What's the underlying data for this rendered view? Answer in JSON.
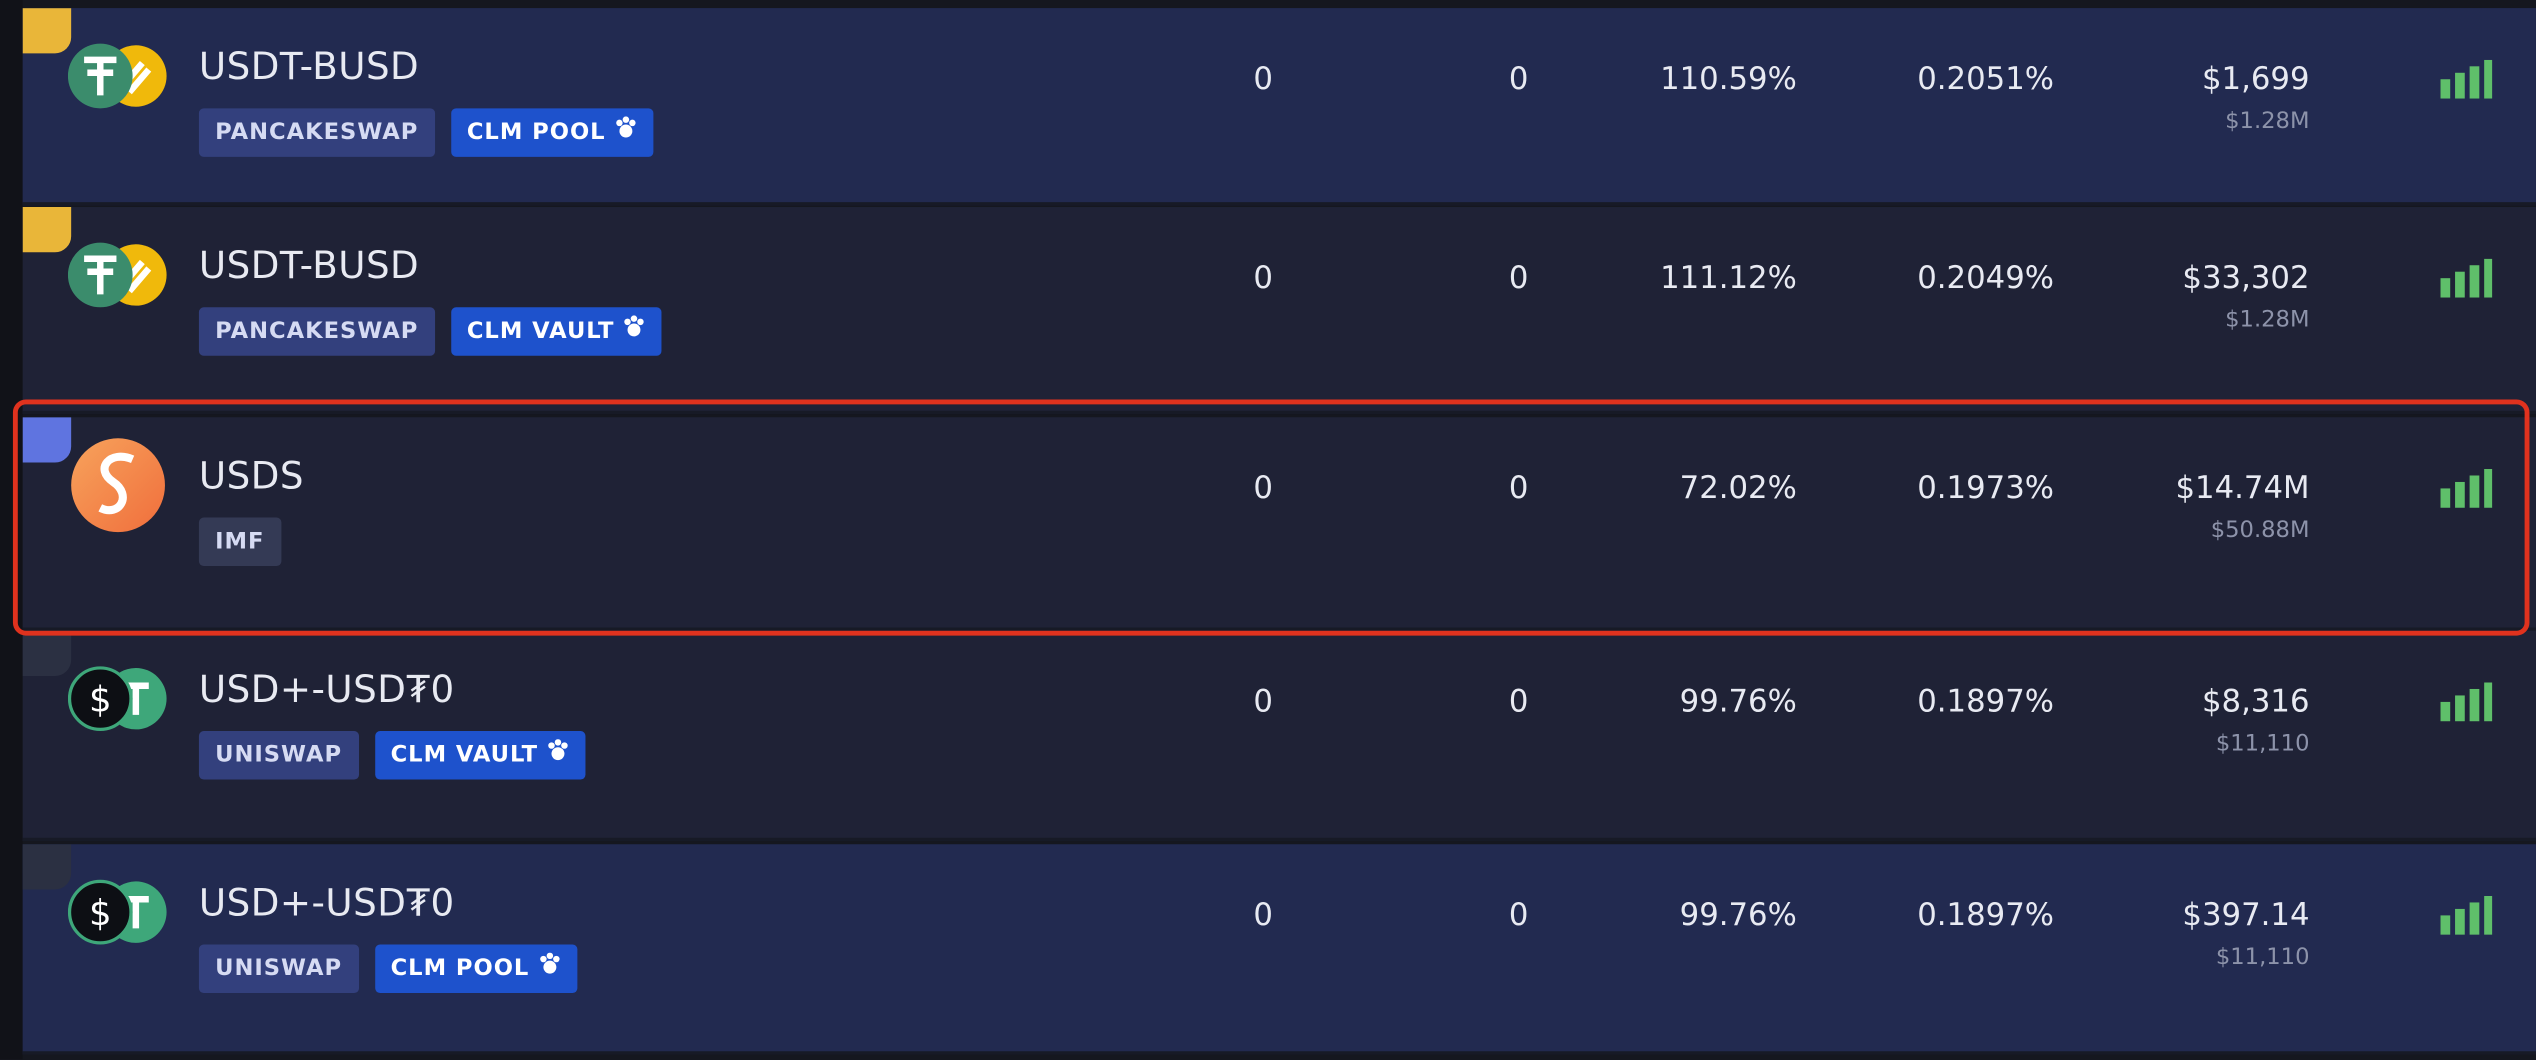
{
  "rows": [
    {
      "name": "USDT-BUSD",
      "tags": [
        "PANCAKESWAP",
        "CLM POOL"
      ],
      "col1": "0",
      "col2": "0",
      "apy": "110.59%",
      "daily": "0.2051%",
      "tvl": "$1,699",
      "tvl_sub": "$1.28M"
    },
    {
      "name": "USDT-BUSD",
      "tags": [
        "PANCAKESWAP",
        "CLM VAULT"
      ],
      "col1": "0",
      "col2": "0",
      "apy": "111.12%",
      "daily": "0.2049%",
      "tvl": "$33,302",
      "tvl_sub": "$1.28M"
    },
    {
      "name": "USDS",
      "tags": [
        "IMF"
      ],
      "col1": "0",
      "col2": "0",
      "apy": "72.02%",
      "daily": "0.1973%",
      "tvl": "$14.74M",
      "tvl_sub": "$50.88M"
    },
    {
      "name": "USD+-USD₮0",
      "tags": [
        "UNISWAP",
        "CLM VAULT"
      ],
      "col1": "0",
      "col2": "0",
      "apy": "99.76%",
      "daily": "0.1897%",
      "tvl": "$8,316",
      "tvl_sub": "$11,110"
    },
    {
      "name": "USD+-USD₮0",
      "tags": [
        "UNISWAP",
        "CLM POOL"
      ],
      "col1": "0",
      "col2": "0",
      "apy": "99.76%",
      "daily": "0.1897%",
      "tvl": "$397.14",
      "tvl_sub": "$11,110"
    }
  ]
}
